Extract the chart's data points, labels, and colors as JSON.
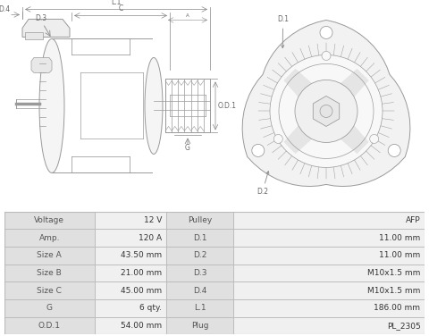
{
  "bg_color": "#ffffff",
  "diagram_color": "#999999",
  "dim_color": "#888888",
  "label_color": "#666666",
  "table_bg_col0": "#e0e0e0",
  "table_bg_col1": "#f0f0f0",
  "table_border": "#bbbbbb",
  "table_rows": [
    [
      "Voltage",
      "12 V",
      "Pulley",
      "AFP"
    ],
    [
      "Amp.",
      "120 A",
      "D.1",
      "11.00 mm"
    ],
    [
      "Size A",
      "43.50 mm",
      "D.2",
      "11.00 mm"
    ],
    [
      "Size B",
      "21.00 mm",
      "D.3",
      "M10x1.5 mm"
    ],
    [
      "Size C",
      "45.00 mm",
      "D.4",
      "M10x1.5 mm"
    ],
    [
      "G",
      "6 qty.",
      "L.1",
      "186.00 mm"
    ],
    [
      "O.D.1",
      "54.00 mm",
      "Plug",
      "PL_2305"
    ]
  ]
}
